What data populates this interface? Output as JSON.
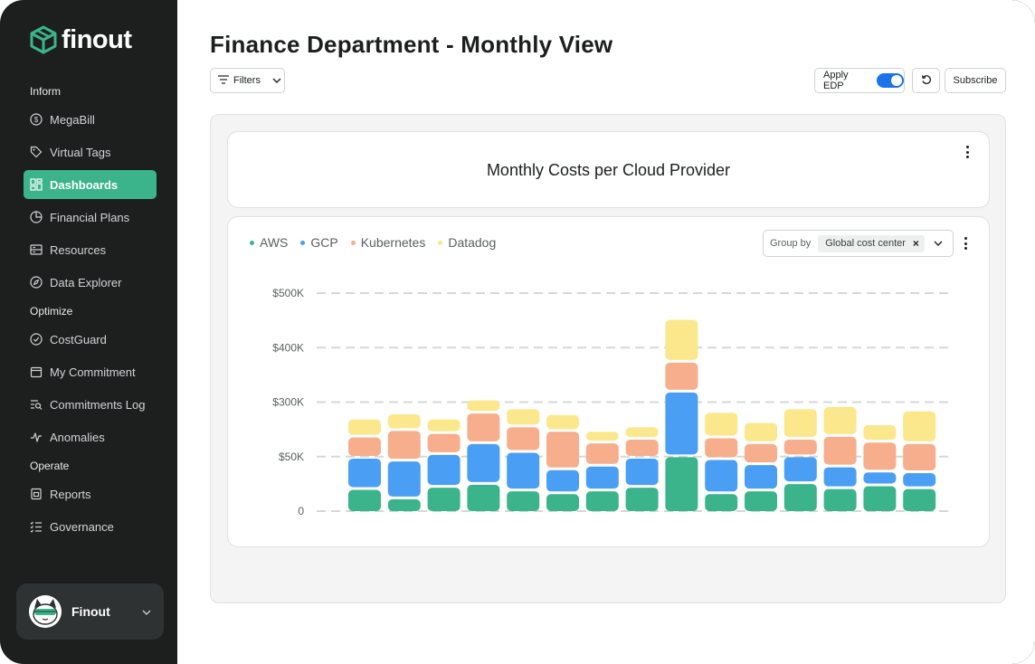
{
  "app": {
    "logo_text": "finout"
  },
  "sidebar": {
    "sections": [
      {
        "title": "Inform"
      },
      {
        "title": "Optimize"
      },
      {
        "title": "Operate"
      }
    ],
    "items": [
      {
        "label": "MegaBill",
        "icon": "dollar-circle-icon"
      },
      {
        "label": "Virtual Tags",
        "icon": "tag-icon"
      },
      {
        "label": "Dashboards",
        "icon": "dashboard-grid-icon",
        "active": true
      },
      {
        "label": "Financial Plans",
        "icon": "pie-chart-icon"
      },
      {
        "label": "Resources",
        "icon": "server-icon"
      },
      {
        "label": "Data Explorer",
        "icon": "compass-icon"
      },
      {
        "label": "CostGuard",
        "icon": "shield-check-icon"
      },
      {
        "label": "My Commitment",
        "icon": "calendar-icon"
      },
      {
        "label": "Commitments Log",
        "icon": "list-search-icon"
      },
      {
        "label": "Anomalies",
        "icon": "pulse-icon"
      },
      {
        "label": "Reports",
        "icon": "report-icon"
      },
      {
        "label": "Governance",
        "icon": "checklist-icon"
      }
    ],
    "user": {
      "name": "Finout",
      "avatar": "cat-avatar"
    }
  },
  "header": {
    "title": "Finance Department - Monthly View",
    "filters_label": "Filters",
    "apply_edp_label": "Apply EDP",
    "apply_edp_on": true,
    "subscribe_label": "Subscribe"
  },
  "widget": {
    "title": "Monthly Costs per Cloud Provider",
    "group_by_label": "Group by",
    "group_by_value": "Global cost center"
  },
  "colors": {
    "accent": "#3bb48c",
    "sidebar_bg": "#1d1f1f",
    "toggle": "#1a73e8"
  },
  "chart_data": {
    "type": "bar",
    "stacked": true,
    "grid": true,
    "y_ticks": [
      "0",
      "$50K",
      "$300K",
      "$400K",
      "$500K"
    ],
    "series": [
      {
        "name": "AWS",
        "color": "#3bb48c",
        "values": [
          33,
          20,
          36,
          40,
          31,
          27,
          31,
          36,
          78,
          27,
          31,
          41,
          34,
          38,
          34
        ]
      },
      {
        "name": "GCP",
        "color": "#4a9ff5",
        "values": [
          43,
          52,
          45,
          56,
          53,
          33,
          34,
          40,
          89,
          47,
          36,
          37,
          30,
          19,
          22
        ]
      },
      {
        "name": "Kubernetes",
        "color": "#f7ae8c",
        "values": [
          29,
          42,
          29,
          42,
          35,
          53,
          32,
          26,
          41,
          30,
          29,
          24,
          42,
          41,
          40
        ]
      },
      {
        "name": "Datadog",
        "color": "#fbe78c",
        "values": [
          25,
          23,
          20,
          18,
          25,
          23,
          16,
          17,
          59,
          35,
          29,
          42,
          41,
          24,
          45
        ]
      }
    ]
  }
}
